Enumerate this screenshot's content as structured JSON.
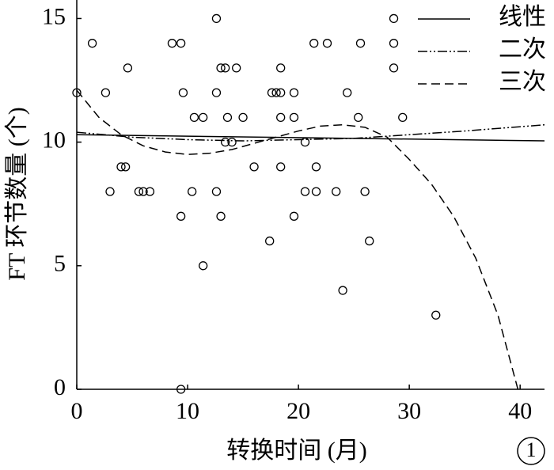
{
  "chart_data": {
    "type": "scatter",
    "x_label": "转换时间 (月)",
    "y_label": "FT 环节数量 (个)",
    "annotation": "1",
    "xlim": [
      0,
      42.2
    ],
    "ylim": [
      0,
      15.75
    ],
    "xticks": [
      0,
      10,
      20,
      30,
      40
    ],
    "yticks": [
      0,
      5,
      10,
      15
    ],
    "legend": "upper right",
    "color": "#000000",
    "points": {
      "x": [
        0,
        1.4,
        2.6,
        3,
        4,
        4.4,
        4.6,
        5.6,
        6,
        6.6,
        8.6,
        9.4,
        9.4,
        9.4,
        9.6,
        10.4,
        10.6,
        11.4,
        11.4,
        12.6,
        12.6,
        12.6,
        13,
        13.4,
        13,
        13.4,
        13.6,
        14,
        14.4,
        15,
        16,
        17.4,
        17.6,
        18,
        18.4,
        18.4,
        18.4,
        18.4,
        19.6,
        19.6,
        19.6,
        20.6,
        20.6,
        21.4,
        21.6,
        21.6,
        22.6,
        23.4,
        24,
        24.4,
        25.4,
        25.6,
        26,
        26.4,
        28.6,
        28.6,
        28.6,
        29.4,
        32.4
      ],
      "values": [
        12,
        14,
        12,
        8,
        9,
        9,
        13,
        8,
        8,
        8,
        14,
        14,
        7,
        0,
        12,
        8,
        11,
        11,
        5,
        15,
        12,
        8,
        13,
        13,
        7,
        10,
        11,
        10,
        13,
        11,
        9,
        6,
        12,
        12,
        13,
        12,
        11,
        9,
        12,
        11,
        7,
        10,
        8,
        14,
        9,
        8,
        14,
        8,
        4,
        12,
        11,
        14,
        8,
        6,
        15,
        14,
        13,
        11,
        3
      ]
    },
    "series": [
      {
        "name": "线性",
        "dash": "solid",
        "x": [
          0,
          42.2
        ],
        "values": [
          10.3,
          10.05
        ]
      },
      {
        "name": "二次",
        "dash": "dashdotdot",
        "x": [
          0,
          5,
          10,
          15,
          20,
          25,
          30,
          35,
          42.2
        ],
        "values": [
          10.4,
          10.2,
          10.1,
          10.05,
          10.1,
          10.15,
          10.3,
          10.45,
          10.7
        ]
      },
      {
        "name": "三次",
        "dash": "dashed",
        "x": [
          0,
          2,
          4,
          6,
          8,
          10,
          12,
          14,
          16,
          18,
          20,
          22,
          24,
          26,
          28,
          30,
          32,
          34,
          36,
          38,
          39.8
        ],
        "values": [
          12.1,
          11.0,
          10.3,
          9.85,
          9.6,
          9.5,
          9.55,
          9.7,
          9.95,
          10.2,
          10.45,
          10.65,
          10.7,
          10.6,
          10.2,
          9.3,
          8.3,
          7.0,
          5.3,
          3.0,
          0
        ]
      }
    ]
  }
}
